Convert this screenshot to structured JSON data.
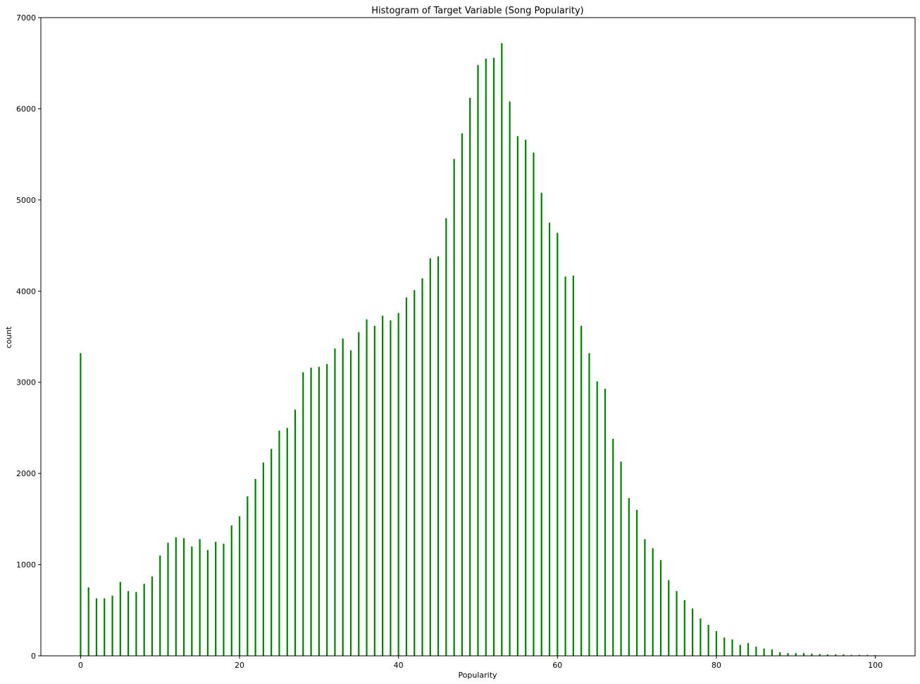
{
  "chart_data": {
    "type": "bar",
    "title": "Histogram of Target Variable (Song Popularity)",
    "xlabel": "Popularity",
    "ylabel": "count",
    "xlim": [
      -5,
      105
    ],
    "ylim": [
      0,
      7000
    ],
    "xticks": [
      0,
      20,
      40,
      60,
      80,
      100
    ],
    "yticks": [
      0,
      1000,
      2000,
      3000,
      4000,
      5000,
      6000,
      7000
    ],
    "grid": false,
    "bar_color": "#008000",
    "series": [
      {
        "x": [
          0,
          1,
          2,
          3,
          4,
          5,
          6,
          7,
          8,
          9,
          10,
          11,
          12,
          13,
          14,
          15,
          16,
          17,
          18,
          19,
          20,
          21,
          22,
          23,
          24,
          25,
          26,
          27,
          28,
          29,
          30,
          31,
          32,
          33,
          34,
          35,
          36,
          37,
          38,
          39,
          40,
          41,
          42,
          43,
          44,
          45,
          46,
          47,
          48,
          49,
          50,
          51,
          52,
          53,
          54,
          55,
          56,
          57,
          58,
          59,
          60,
          61,
          62,
          63,
          64,
          65,
          66,
          67,
          68,
          69,
          70,
          71,
          72,
          73,
          74,
          75,
          76,
          77,
          78,
          79,
          80,
          81,
          82,
          83,
          84,
          85,
          86,
          87,
          88,
          89,
          90,
          91,
          92,
          93,
          94,
          95,
          96,
          97,
          98,
          99,
          100
        ],
        "values": [
          3320,
          750,
          630,
          630,
          660,
          810,
          710,
          700,
          790,
          870,
          1100,
          1240,
          1300,
          1290,
          1200,
          1280,
          1160,
          1250,
          1230,
          1430,
          1530,
          1750,
          1940,
          2120,
          2270,
          2470,
          2500,
          2700,
          3110,
          3160,
          3170,
          3200,
          3370,
          3480,
          3350,
          3550,
          3690,
          3620,
          3730,
          3680,
          3760,
          3930,
          4010,
          4140,
          4360,
          4380,
          4800,
          5450,
          5730,
          6120,
          6480,
          6550,
          6560,
          6720,
          6080,
          5700,
          5660,
          5520,
          5080,
          4750,
          4640,
          4160,
          4170,
          3620,
          3320,
          3010,
          2930,
          2380,
          2130,
          1730,
          1600,
          1280,
          1180,
          1050,
          830,
          710,
          610,
          520,
          410,
          340,
          270,
          200,
          180,
          120,
          140,
          100,
          80,
          70,
          40,
          30,
          30,
          30,
          25,
          20,
          15,
          15,
          15,
          10,
          10,
          10,
          8
        ]
      }
    ]
  }
}
